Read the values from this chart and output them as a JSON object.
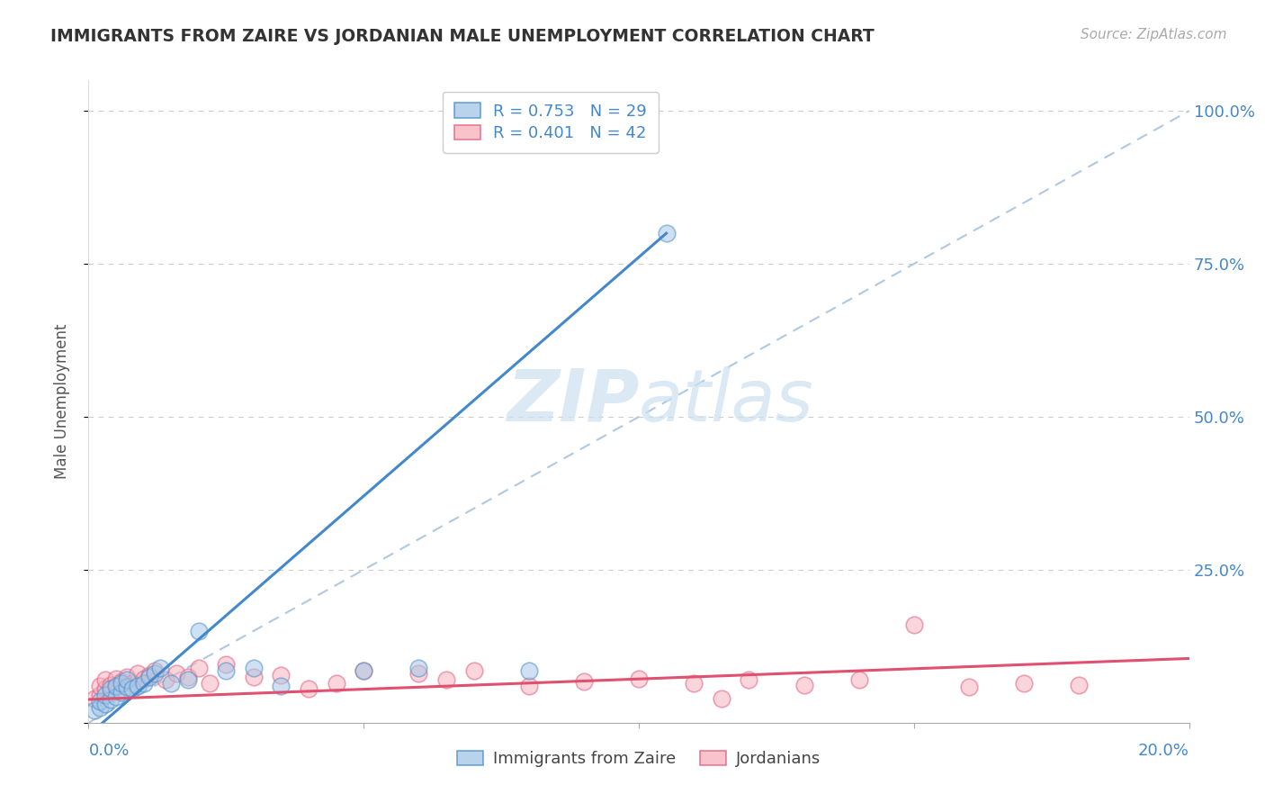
{
  "title": "IMMIGRANTS FROM ZAIRE VS JORDANIAN MALE UNEMPLOYMENT CORRELATION CHART",
  "source": "Source: ZipAtlas.com",
  "ylabel": "Male Unemployment",
  "legend_label1": "R = 0.753   N = 29",
  "legend_label2": "R = 0.401   N = 42",
  "legend_bottom_label1": "Immigrants from Zaire",
  "legend_bottom_label2": "Jordanians",
  "blue_fill": "#a8c8e8",
  "pink_fill": "#f8b4c0",
  "blue_edge": "#5090c8",
  "pink_edge": "#e06080",
  "blue_line": "#4488cc",
  "pink_line": "#e05070",
  "dash_line": "#b0c8e0",
  "grid_color": "#cccccc",
  "ytick_color": "#4488cc",
  "watermark_color": "#cce0f0",
  "blue_scatter_x": [
    0.001,
    0.002,
    0.002,
    0.003,
    0.003,
    0.004,
    0.004,
    0.005,
    0.005,
    0.006,
    0.006,
    0.007,
    0.007,
    0.008,
    0.009,
    0.01,
    0.011,
    0.012,
    0.013,
    0.015,
    0.018,
    0.02,
    0.025,
    0.03,
    0.035,
    0.05,
    0.06,
    0.08,
    0.105
  ],
  "blue_scatter_y": [
    0.02,
    0.025,
    0.035,
    0.03,
    0.045,
    0.038,
    0.055,
    0.042,
    0.06,
    0.05,
    0.065,
    0.058,
    0.07,
    0.055,
    0.06,
    0.065,
    0.075,
    0.08,
    0.09,
    0.065,
    0.07,
    0.15,
    0.085,
    0.09,
    0.06,
    0.085,
    0.09,
    0.085,
    0.8
  ],
  "pink_scatter_x": [
    0.001,
    0.002,
    0.002,
    0.003,
    0.003,
    0.004,
    0.004,
    0.005,
    0.005,
    0.006,
    0.007,
    0.008,
    0.009,
    0.01,
    0.011,
    0.012,
    0.014,
    0.016,
    0.018,
    0.02,
    0.022,
    0.025,
    0.03,
    0.035,
    0.04,
    0.045,
    0.05,
    0.06,
    0.065,
    0.07,
    0.08,
    0.09,
    0.1,
    0.11,
    0.115,
    0.12,
    0.13,
    0.14,
    0.15,
    0.16,
    0.17,
    0.18
  ],
  "pink_scatter_y": [
    0.04,
    0.045,
    0.06,
    0.055,
    0.07,
    0.048,
    0.062,
    0.072,
    0.058,
    0.068,
    0.075,
    0.065,
    0.08,
    0.072,
    0.078,
    0.085,
    0.07,
    0.08,
    0.075,
    0.09,
    0.065,
    0.095,
    0.075,
    0.078,
    0.055,
    0.065,
    0.085,
    0.08,
    0.07,
    0.085,
    0.06,
    0.068,
    0.072,
    0.065,
    0.04,
    0.07,
    0.062,
    0.07,
    0.16,
    0.058,
    0.065,
    0.062
  ],
  "blue_line_x0": 0.0,
  "blue_line_y0": -0.02,
  "blue_line_x1": 0.105,
  "blue_line_y1": 0.8,
  "pink_line_x0": 0.0,
  "pink_line_y0": 0.038,
  "pink_line_x1": 0.2,
  "pink_line_y1": 0.105,
  "xlim": [
    0.0,
    0.2
  ],
  "ylim": [
    0.0,
    1.05
  ],
  "yticks": [
    0.0,
    0.25,
    0.5,
    0.75,
    1.0
  ],
  "ytick_labels": [
    "",
    "25.0%",
    "50.0%",
    "75.0%",
    "100.0%"
  ],
  "hgrid_vals": [
    0.25,
    0.5,
    0.75,
    1.0
  ]
}
